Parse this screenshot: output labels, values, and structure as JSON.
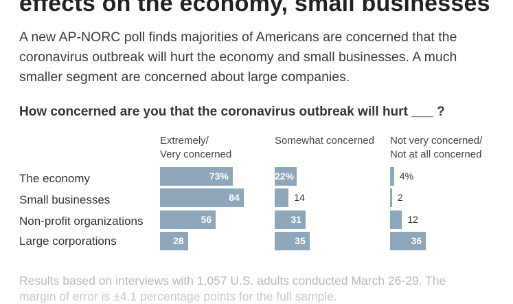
{
  "headline": "effects on the economy, small businesses",
  "intro": "A new AP-NORC poll finds majorities of Americans are concerned that the coronavirus outbreak will hurt the economy and small businesses. A much smaller segment are concerned about large companies.",
  "question": "How concerned are you that the coronavirus outbreak will hurt ___ ?",
  "footnote": "Results based on interviews with 1,057 U.S. adults conducted March 26-29. The",
  "footnote_cut": "margin of error is ±4.1 percentage points for the full sample.",
  "colors": {
    "bar": "#8fa7ba"
  },
  "chart_data": {
    "type": "bar",
    "title": "How concerned are you that the coronavirus outbreak will hurt ___ ?",
    "categories": [
      "The economy",
      "Small businesses",
      "Non-profit organizations",
      "Large corporations"
    ],
    "series": [
      {
        "name": "Extremely/\nVery concerned",
        "values": [
          73,
          84,
          56,
          28
        ],
        "labels": [
          "73%",
          "84",
          "56",
          "28"
        ]
      },
      {
        "name": "Somewhat concerned",
        "values": [
          22,
          14,
          31,
          35
        ],
        "labels": [
          "22%",
          "14",
          "31",
          "35"
        ]
      },
      {
        "name": "Not very concerned/\nNot at all concerned",
        "values": [
          4,
          2,
          12,
          36
        ],
        "labels": [
          "4%",
          "2",
          "12",
          "36"
        ]
      }
    ],
    "value_unit": "%",
    "grid": false,
    "legend": "column headers"
  }
}
